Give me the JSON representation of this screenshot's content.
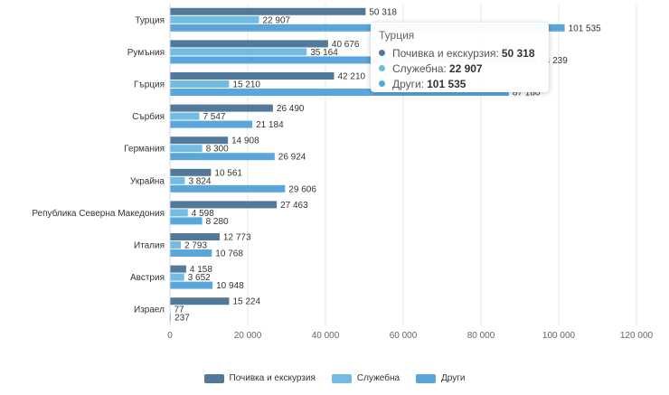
{
  "chart_data": {
    "type": "bar",
    "orientation": "horizontal",
    "categories": [
      "Турция",
      "Румъния",
      "Гърция",
      "Сърбия",
      "Германия",
      "Украйна",
      "Република Северна Македония",
      "Италия",
      "Австрия",
      "Израел"
    ],
    "series": [
      {
        "name": "Почивка и екскурзия",
        "color": "#52799a",
        "values": [
          50318,
          40676,
          42210,
          26490,
          14908,
          10561,
          27463,
          12773,
          4158,
          15224
        ]
      },
      {
        "name": "Служебна",
        "color": "#72bce1",
        "values": [
          22907,
          35164,
          15210,
          7547,
          8300,
          3824,
          4598,
          2793,
          3652,
          77
        ]
      },
      {
        "name": "Други",
        "color": "#5aa6da",
        "values": [
          101535,
          94239,
          87180,
          21184,
          26924,
          29606,
          8280,
          10768,
          10948,
          237
        ]
      }
    ],
    "value_labels": [
      [
        "50 318",
        "22 907",
        "101 535"
      ],
      [
        "40 676",
        "35 164",
        "94 239"
      ],
      [
        "42 210",
        "15 210",
        "87 180"
      ],
      [
        "26 490",
        "7 547",
        "21 184"
      ],
      [
        "14 908",
        "8 300",
        "26 924"
      ],
      [
        "10 561",
        "3 824",
        "29 606"
      ],
      [
        "27 463",
        "4 598",
        "8 280"
      ],
      [
        "12 773",
        "2 793",
        "10 768"
      ],
      [
        "4 158",
        "3 652",
        "10 948"
      ],
      [
        "15 224",
        "77",
        "237"
      ]
    ],
    "xlim": [
      0,
      120000
    ],
    "x_ticks": [
      0,
      20000,
      40000,
      60000,
      80000,
      100000,
      120000
    ],
    "x_tick_labels": [
      "0",
      "20 000",
      "40 000",
      "60 000",
      "80 000",
      "100 000",
      "120 000"
    ],
    "grid": true,
    "legend_position": "bottom-center"
  },
  "tooltip": {
    "title": "Турция",
    "rows": [
      {
        "label": "Почивка и екскурзия:",
        "value": "50 318",
        "color": "#52799a"
      },
      {
        "label": "Служебна:",
        "value": "22 907",
        "color": "#72bce1"
      },
      {
        "label": "Други:",
        "value": "101 535",
        "color": "#5aa6da"
      }
    ]
  }
}
